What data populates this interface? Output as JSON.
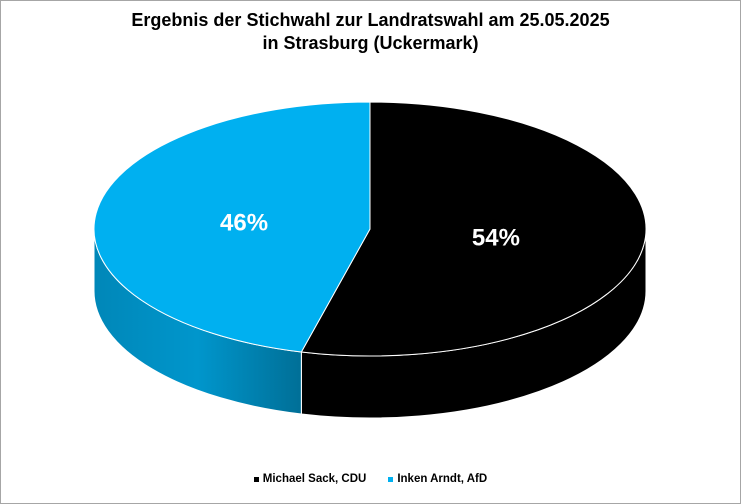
{
  "chart_data": {
    "type": "pie",
    "title_lines": [
      "Ergebnis der Stichwahl zur Landratswahl am 25.05.2025",
      "in Strasburg (Uckermark)"
    ],
    "categories": [
      "Michael Sack, CDU",
      "Inken Arndt, AfD"
    ],
    "values": [
      54,
      46
    ],
    "data_labels": [
      "54%",
      "46%"
    ],
    "colors": [
      "#000000",
      "#00b0f0"
    ],
    "legend_position": "bottom",
    "style": "3d"
  }
}
